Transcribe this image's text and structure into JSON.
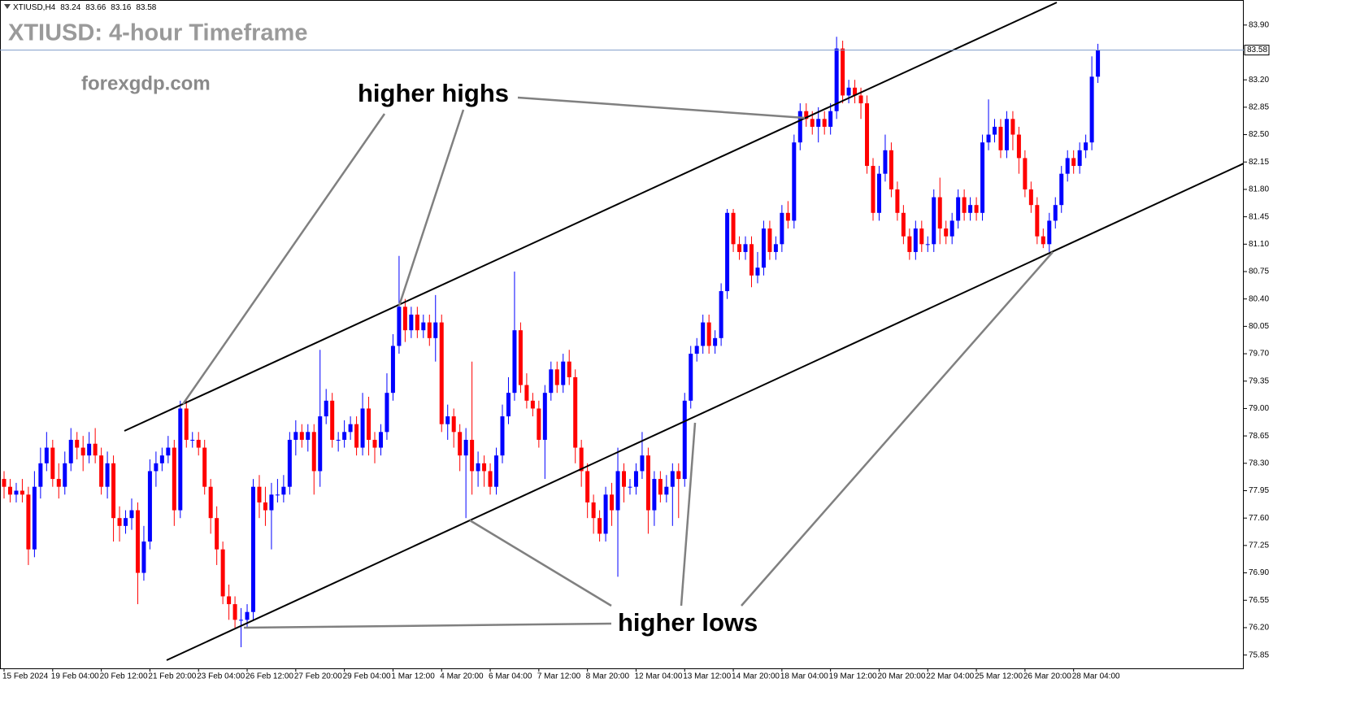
{
  "chart_data": {
    "type": "candlestick",
    "title": "XTIUSD: 4-hour Timeframe",
    "watermark": "forexgdp.com",
    "header": {
      "symbol": "XTIUSD,H4",
      "values": [
        83.24,
        83.66,
        83.16,
        83.58
      ]
    },
    "annotations": [
      "higher highs",
      "higher lows"
    ],
    "up_color": "#0000ff",
    "down_color": "#ff0000",
    "price_line": 83.58,
    "xlim": [
      -0.67,
      204.0
    ],
    "ylim": [
      75.68,
      84.22
    ],
    "yticks": [
      75.85,
      {
        "value": 76.2,
        "label": "76.20"
      },
      76.55,
      {
        "value": 76.9,
        "label": "76.90"
      },
      77.25,
      {
        "value": 77.6,
        "label": "77.60"
      },
      77.95,
      {
        "value": 78.3,
        "label": "78.30"
      },
      78.65,
      {
        "value": 79,
        "label": "79.00"
      },
      79.35,
      {
        "value": 79.7,
        "label": "79.70"
      },
      80.05,
      {
        "value": 80.4,
        "label": "80.40"
      },
      80.75,
      {
        "value": 81.1,
        "label": "81.10"
      },
      81.45,
      {
        "value": 81.8,
        "label": "81.80"
      },
      82.15,
      {
        "value": 82.5,
        "label": "82.50"
      },
      82.85,
      {
        "value": 83.2,
        "label": "83.20"
      },
      {
        "value": 83.9,
        "label": "83.90"
      }
    ],
    "xticks": [
      {
        "value": 0,
        "label": "15 Feb 2024"
      },
      {
        "value": 8,
        "label": "19 Feb 04:00"
      },
      {
        "value": 16,
        "label": "20 Feb 12:00"
      },
      {
        "value": 24,
        "label": "21 Feb 20:00"
      },
      {
        "value": 32,
        "label": "23 Feb 04:00"
      },
      {
        "value": 40,
        "label": "26 Feb 12:00"
      },
      {
        "value": 48,
        "label": "27 Feb 20:00"
      },
      {
        "value": 56,
        "label": "29 Feb 04:00"
      },
      {
        "value": 64,
        "label": "1 Mar 12:00"
      },
      {
        "value": 72,
        "label": "4 Mar 20:00"
      },
      {
        "value": 80,
        "label": "6 Mar 04:00"
      },
      {
        "value": 88,
        "label": "7 Mar 12:00"
      },
      {
        "value": 96,
        "label": "8 Mar 20:00"
      },
      {
        "value": 104,
        "label": "12 Mar 04:00"
      },
      {
        "value": 112,
        "label": "13 Mar 12:00"
      },
      {
        "value": 120,
        "label": "14 Mar 20:00"
      },
      {
        "value": 128,
        "label": "18 Mar 04:00"
      },
      {
        "value": 136,
        "label": "19 Mar 12:00"
      },
      {
        "value": 144,
        "label": "20 Mar 20:00"
      },
      {
        "value": 152,
        "label": "22 Mar 04:00"
      },
      {
        "value": 160,
        "label": "25 Mar 12:00"
      },
      {
        "value": 168,
        "label": "26 Mar 20:00"
      },
      {
        "value": 176,
        "label": "28 Mar 04:00"
      }
    ],
    "open": [
      78.1,
      78.0,
      77.9,
      77.95,
      77.9,
      77.2,
      78.0,
      78.3,
      78.5,
      78.1,
      78.0,
      78.3,
      78.6,
      78.5,
      78.4,
      78.55,
      78.4,
      78.0,
      78.3,
      77.6,
      77.5,
      77.6,
      77.7,
      76.9,
      77.3,
      78.2,
      78.3,
      78.4,
      78.5,
      77.7,
      79.0,
      78.6,
      78.6,
      78.5,
      78.0,
      77.6,
      77.2,
      76.6,
      76.5,
      76.3,
      76.3,
      76.4,
      78.0,
      77.8,
      77.7,
      77.9,
      77.9,
      78.0,
      78.6,
      78.7,
      78.6,
      78.7,
      78.2,
      78.9,
      79.1,
      78.6,
      78.6,
      78.7,
      78.8,
      78.5,
      79.0,
      78.6,
      78.5,
      78.7,
      79.2,
      79.8,
      80.3,
      80.0,
      80.2,
      80.0,
      80.1,
      79.9,
      80.1,
      78.8,
      78.9,
      78.7,
      78.4,
      78.6,
      78.2,
      78.3,
      78.2,
      78.0,
      78.4,
      78.9,
      79.2,
      80.0,
      79.3,
      79.1,
      79.0,
      78.6,
      79.2,
      79.5,
      79.3,
      79.6,
      79.4,
      78.5,
      78.2,
      77.8,
      77.6,
      77.4,
      77.9,
      77.7,
      78.2,
      78.0,
      78.0,
      78.2,
      78.4,
      77.7,
      78.1,
      77.9,
      78.0,
      78.2,
      78.1,
      79.1,
      79.7,
      79.8,
      80.1,
      79.8,
      79.9,
      80.5,
      81.5,
      81.1,
      81.0,
      81.1,
      80.7,
      80.8,
      81.3,
      81.0,
      81.1,
      81.5,
      81.4,
      82.4,
      82.8,
      82.7,
      82.6,
      82.7,
      82.6,
      82.8,
      83.6,
      83.0,
      83.1,
      83.0,
      82.9,
      82.1,
      81.5,
      82.0,
      82.3,
      81.8,
      81.5,
      81.2,
      81.0,
      81.3,
      81.1,
      81.1,
      81.7,
      81.3,
      81.2,
      81.4,
      81.7,
      81.5,
      81.6,
      81.5,
      82.4,
      82.5,
      82.6,
      82.3,
      82.7,
      82.5,
      82.2,
      81.8,
      81.6,
      81.2,
      81.1,
      81.4,
      81.6,
      82.0,
      82.2,
      82.1,
      82.3,
      82.4,
      83.24
    ],
    "high": [
      78.2,
      78.1,
      78.05,
      78.1,
      78.0,
      78.2,
      78.5,
      78.7,
      78.6,
      78.3,
      78.45,
      78.75,
      78.7,
      78.65,
      78.7,
      78.75,
      78.5,
      78.45,
      78.4,
      77.75,
      77.7,
      77.85,
      77.8,
      77.5,
      78.35,
      78.45,
      78.5,
      78.65,
      78.6,
      79.1,
      79.1,
      78.7,
      78.7,
      78.6,
      78.1,
      77.75,
      77.3,
      76.75,
      76.6,
      76.45,
      76.5,
      78.1,
      78.15,
      78.0,
      78.05,
      78.1,
      78.15,
      78.7,
      78.85,
      78.8,
      78.8,
      78.8,
      79.75,
      79.25,
      79.2,
      78.7,
      78.85,
      78.9,
      78.9,
      79.2,
      79.15,
      78.7,
      78.8,
      79.45,
      79.95,
      80.95,
      80.4,
      80.3,
      80.3,
      80.2,
      80.2,
      80.45,
      80.2,
      79.05,
      79.0,
      78.8,
      78.75,
      79.6,
      78.45,
      78.4,
      78.3,
      78.5,
      79.05,
      79.4,
      80.75,
      80.1,
      79.45,
      79.2,
      79.1,
      79.3,
      79.6,
      79.6,
      79.7,
      79.75,
      79.5,
      78.6,
      78.3,
      77.9,
      77.7,
      78.0,
      78.05,
      78.5,
      78.3,
      78.1,
      78.3,
      78.7,
      78.5,
      78.2,
      78.2,
      78.15,
      78.3,
      78.3,
      79.2,
      79.8,
      79.9,
      80.2,
      80.2,
      80.0,
      80.6,
      81.55,
      81.55,
      81.2,
      81.2,
      81.2,
      81.0,
      81.4,
      81.4,
      81.2,
      81.6,
      81.65,
      82.5,
      82.9,
      82.9,
      82.8,
      82.85,
      82.8,
      82.9,
      83.75,
      83.7,
      83.2,
      83.2,
      83.1,
      83.0,
      82.2,
      82.1,
      82.5,
      82.4,
      81.9,
      81.6,
      81.3,
      81.4,
      81.4,
      81.2,
      81.8,
      81.95,
      81.4,
      81.5,
      81.8,
      81.8,
      81.7,
      81.7,
      82.5,
      82.95,
      82.7,
      82.7,
      82.8,
      82.8,
      82.6,
      82.3,
      81.9,
      81.7,
      81.3,
      81.5,
      81.7,
      82.1,
      82.3,
      82.3,
      82.4,
      82.5,
      83.5,
      83.66
    ],
    "low": [
      77.85,
      77.8,
      77.8,
      77.8,
      77.0,
      77.1,
      77.85,
      78.2,
      78.0,
      77.85,
      77.9,
      78.2,
      78.35,
      78.2,
      78.3,
      78.3,
      77.9,
      77.85,
      77.3,
      77.3,
      77.4,
      77.45,
      76.5,
      76.8,
      77.2,
      78.0,
      78.2,
      78.3,
      77.5,
      77.6,
      78.5,
      78.5,
      78.4,
      77.9,
      77.4,
      77.0,
      76.5,
      76.3,
      76.2,
      75.95,
      76.2,
      76.3,
      77.6,
      77.5,
      77.2,
      77.8,
      77.8,
      77.9,
      78.4,
      78.5,
      78.45,
      77.9,
      78.0,
      78.8,
      78.5,
      78.45,
      78.5,
      78.6,
      78.4,
      78.4,
      78.4,
      78.3,
      78.4,
      78.6,
      79.1,
      79.7,
      79.85,
      79.9,
      79.9,
      79.9,
      79.8,
      79.6,
      78.7,
      78.6,
      78.5,
      78.2,
      77.6,
      77.9,
      78.0,
      78.0,
      77.9,
      77.9,
      78.3,
      78.8,
      79.1,
      79.2,
      79.0,
      78.9,
      78.5,
      78.1,
      79.1,
      79.2,
      79.2,
      79.3,
      78.3,
      78.0,
      77.6,
      77.4,
      77.3,
      77.3,
      77.5,
      76.85,
      77.8,
      77.9,
      77.9,
      78.1,
      77.4,
      77.5,
      77.8,
      77.8,
      77.5,
      77.6,
      78.0,
      79.0,
      79.6,
      79.7,
      79.7,
      79.7,
      79.8,
      80.4,
      81.0,
      80.9,
      80.9,
      80.55,
      80.6,
      80.7,
      80.9,
      80.9,
      81.0,
      81.3,
      81.3,
      82.3,
      82.6,
      82.5,
      82.4,
      82.5,
      82.5,
      82.7,
      82.9,
      82.9,
      82.9,
      82.7,
      82.0,
      81.4,
      81.4,
      81.9,
      81.7,
      81.4,
      81.1,
      80.9,
      80.9,
      81.0,
      81.0,
      81.0,
      81.1,
      81.1,
      81.1,
      81.3,
      81.4,
      81.4,
      81.4,
      81.4,
      82.3,
      82.4,
      82.2,
      82.2,
      82.3,
      82.0,
      81.7,
      81.5,
      81.1,
      81.05,
      81.0,
      81.3,
      81.5,
      81.9,
      82.0,
      82.0,
      82.2,
      82.3,
      83.16
    ],
    "close": [
      78.0,
      77.9,
      77.95,
      77.9,
      77.2,
      78.0,
      78.3,
      78.5,
      78.1,
      78.0,
      78.3,
      78.6,
      78.5,
      78.4,
      78.55,
      78.4,
      78.0,
      78.3,
      77.6,
      77.5,
      77.6,
      77.7,
      76.9,
      77.3,
      78.2,
      78.3,
      78.4,
      78.5,
      77.7,
      79.0,
      78.6,
      78.6,
      78.5,
      78.0,
      77.6,
      77.2,
      76.6,
      76.5,
      76.3,
      76.3,
      76.4,
      78.0,
      77.8,
      77.7,
      77.9,
      77.9,
      78.0,
      78.6,
      78.7,
      78.6,
      78.7,
      78.2,
      78.9,
      79.1,
      78.6,
      78.6,
      78.7,
      78.8,
      78.5,
      79.0,
      78.6,
      78.5,
      78.7,
      79.2,
      79.8,
      80.3,
      80.0,
      80.2,
      80.0,
      80.1,
      79.9,
      80.1,
      78.8,
      78.9,
      78.7,
      78.4,
      78.6,
      78.2,
      78.3,
      78.2,
      78.0,
      78.4,
      78.9,
      79.2,
      80.0,
      79.3,
      79.1,
      79.0,
      78.6,
      79.2,
      79.5,
      79.3,
      79.6,
      79.4,
      78.5,
      78.2,
      77.8,
      77.6,
      77.4,
      77.9,
      77.7,
      78.2,
      78.0,
      78.0,
      78.2,
      78.4,
      77.7,
      78.1,
      77.9,
      78.0,
      78.2,
      78.1,
      79.1,
      79.7,
      79.8,
      80.1,
      79.8,
      79.9,
      80.5,
      81.5,
      81.1,
      81.0,
      81.1,
      80.7,
      80.8,
      81.3,
      81.0,
      81.1,
      81.5,
      81.4,
      82.4,
      82.8,
      82.7,
      82.6,
      82.7,
      82.6,
      82.8,
      83.6,
      83.0,
      83.1,
      83.0,
      82.9,
      82.1,
      81.5,
      82.0,
      82.3,
      81.8,
      81.5,
      81.2,
      81.0,
      81.3,
      81.1,
      81.1,
      81.7,
      81.3,
      81.2,
      81.4,
      81.7,
      81.5,
      81.6,
      81.5,
      82.4,
      82.5,
      82.6,
      82.3,
      82.7,
      82.5,
      82.2,
      81.8,
      81.6,
      81.2,
      81.1,
      81.4,
      81.6,
      82.0,
      82.2,
      82.1,
      82.3,
      82.4,
      83.24,
      83.58
    ]
  }
}
